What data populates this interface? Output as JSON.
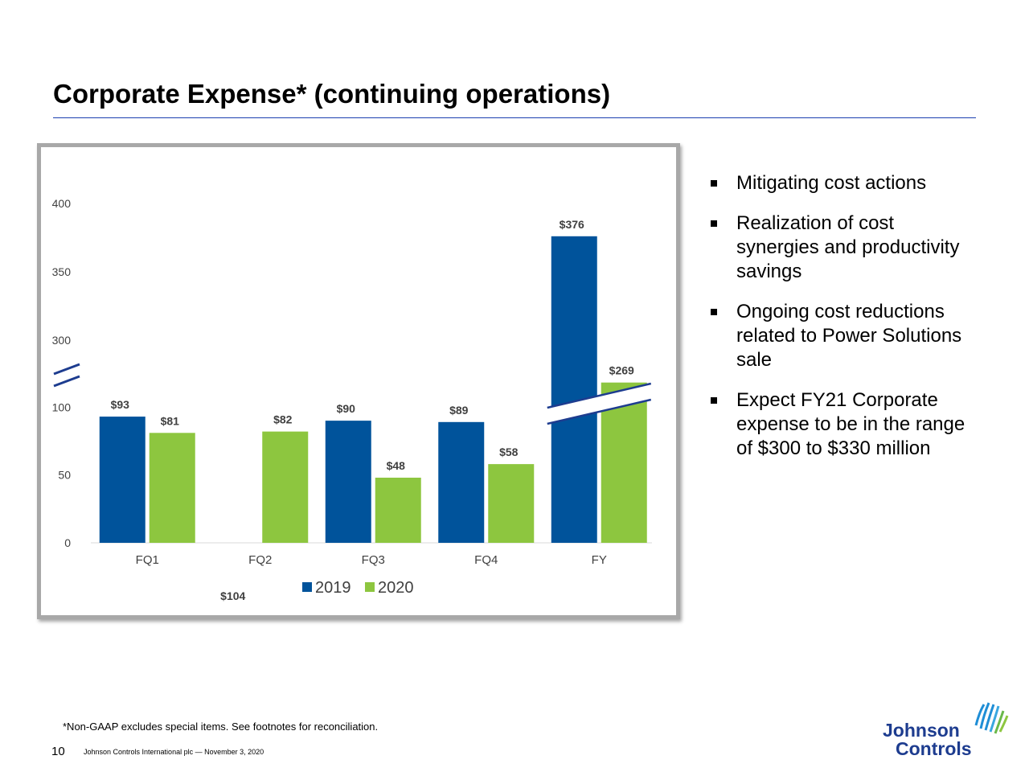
{
  "slide": {
    "title": "Corporate Expense* (continuing operations)",
    "footnote": "*Non-GAAP excludes special items. See footnotes for reconciliation.",
    "page_number": "10",
    "footer_text": "Johnson Controls International plc  —  November 3, 2020",
    "logo_text_line1": "Johnson",
    "logo_text_line2": "Controls"
  },
  "bullets": [
    "Mitigating cost actions",
    "Realization of cost synergies and productivity savings",
    "Ongoing cost reductions related to Power Solutions sale",
    "Expect FY21 Corporate expense to be in the range of $300 to $330 million"
  ],
  "colors": {
    "series_2019": "#00539b",
    "series_2020": "#8dc63f",
    "title_rule": "#1c3fb0"
  },
  "chart_data": {
    "type": "bar",
    "title": "",
    "xlabel": "",
    "ylabel": "",
    "categories": [
      "FQ1",
      "FQ2",
      "FQ3",
      "FQ4",
      "FY"
    ],
    "series": [
      {
        "name": "2019",
        "values": [
          93,
          104,
          90,
          89,
          376
        ],
        "labels": [
          "$93",
          "$104",
          "$90",
          "$89",
          "$376"
        ]
      },
      {
        "name": "2020",
        "values": [
          81,
          82,
          48,
          58,
          269
        ],
        "labels": [
          "$81",
          "$82",
          "$48",
          "$58",
          "$269"
        ]
      }
    ],
    "y_ticks": [
      "0",
      "50",
      "100",
      "300",
      "350",
      "400"
    ],
    "broken_axis": {
      "lower_range": [
        0,
        100
      ],
      "upper_range": [
        300,
        400
      ]
    },
    "legend_position": "bottom",
    "grid": false
  }
}
